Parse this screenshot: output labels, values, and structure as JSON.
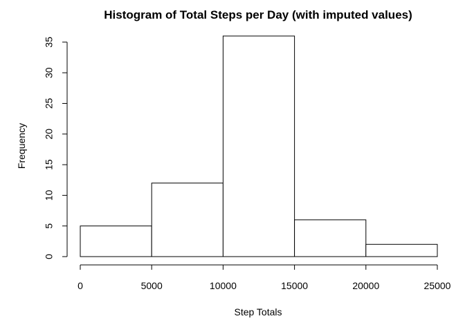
{
  "chart_data": {
    "type": "bar",
    "title": "Histogram of Total Steps per Day (with imputed values)",
    "xlabel": "Step Totals",
    "ylabel": "Frequency",
    "bins": [
      {
        "from": 0,
        "to": 5000,
        "count": 5
      },
      {
        "from": 5000,
        "to": 10000,
        "count": 12
      },
      {
        "from": 10000,
        "to": 15000,
        "count": 36
      },
      {
        "from": 15000,
        "to": 20000,
        "count": 6
      },
      {
        "from": 20000,
        "to": 25000,
        "count": 2
      }
    ],
    "x_ticks": [
      0,
      5000,
      10000,
      15000,
      20000,
      25000
    ],
    "y_ticks": [
      0,
      5,
      10,
      15,
      20,
      25,
      30,
      35
    ],
    "xlim": [
      0,
      25000
    ],
    "ylim": [
      0,
      36
    ],
    "grid": false,
    "colors": {
      "bar_fill": "#ffffff",
      "bar_stroke": "#000000"
    }
  }
}
